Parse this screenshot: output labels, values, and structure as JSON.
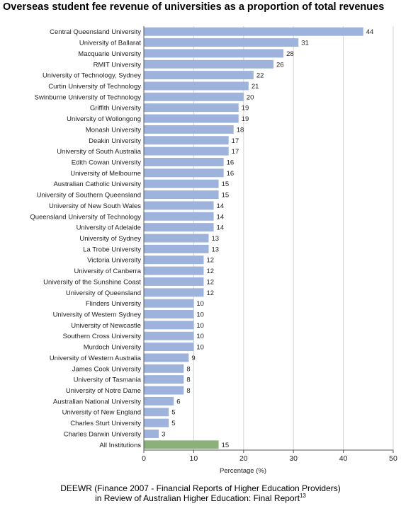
{
  "chart_data": {
    "type": "bar",
    "orientation": "horizontal",
    "title": "Overseas student fee revenue of universities as a proportion of total revenues",
    "xlabel": "Percentage (%)",
    "ylabel": "",
    "xlim": [
      0,
      50
    ],
    "xticks": [
      0,
      10,
      20,
      30,
      40,
      50
    ],
    "grid": true,
    "colors": {
      "bar": "#9eb3dc",
      "highlight": "#8cb07a"
    },
    "categories": [
      "Central Queensland University",
      "University of Ballarat",
      "Macquarie University",
      "RMIT University",
      "University of Technology, Sydney",
      "Curtin University of Technology",
      "Swinburne University of Technology",
      "Griffith University",
      "University of Wollongong",
      "Monash University",
      "Deakin University",
      "University of South Australia",
      "Edith Cowan University",
      "University of Melbourne",
      "Australian Catholic University",
      "University of Southern Queensland",
      "University of New South Wales",
      "Queensland University of Technology",
      "University of Adelaide",
      "University of Sydney",
      "La Trobe University",
      "Victoria University",
      "University of Canberra",
      "University of the Sunshine Coast",
      "University of Queensland",
      "Flinders University",
      "University of Western Sydney",
      "University of Newcastle",
      "Southern Cross University",
      "Murdoch University",
      "University of Western Australia",
      "James Cook University",
      "University of Tasmania",
      "University of Notre Dame",
      "Australian National University",
      "University of New England",
      "Charles Sturt University",
      "Charles Darwin University",
      "All Institutions"
    ],
    "values": [
      44,
      31,
      28,
      26,
      22,
      21,
      20,
      19,
      19,
      18,
      17,
      17,
      16,
      16,
      15,
      15,
      14,
      14,
      14,
      13,
      13,
      12,
      12,
      12,
      12,
      10,
      10,
      10,
      10,
      10,
      9,
      8,
      8,
      8,
      6,
      5,
      5,
      3,
      15
    ],
    "highlighted_category": "All Institutions"
  },
  "source": {
    "line1": "DEEWR (Finance 2007 - Financial Reports of Higher Education Providers)",
    "line2": "in Review of Australian Higher Education: Final Report",
    "footnote": "13"
  }
}
